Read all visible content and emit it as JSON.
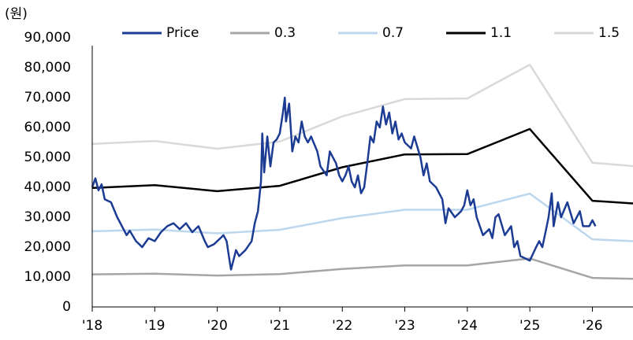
{
  "chart_data": {
    "type": "line",
    "y_label": "(원)",
    "xlim": [
      2018,
      2026.65
    ],
    "ylim": [
      0,
      90000
    ],
    "xticks": [
      {
        "value": 2018,
        "label": "'18"
      },
      {
        "value": 2019,
        "label": "'19"
      },
      {
        "value": 2020,
        "label": "'20"
      },
      {
        "value": 2021,
        "label": "'21"
      },
      {
        "value": 2022,
        "label": "'22"
      },
      {
        "value": 2023,
        "label": "'23"
      },
      {
        "value": 2024,
        "label": "'24"
      },
      {
        "value": 2025,
        "label": "'25"
      },
      {
        "value": 2026,
        "label": "'26"
      }
    ],
    "yticks": [
      0,
      {
        "value": 10000,
        "label": "10,000"
      },
      {
        "value": 20000,
        "label": "20,000"
      },
      {
        "value": 30000,
        "label": "30,000"
      },
      {
        "value": 40000,
        "label": "40,000"
      },
      {
        "value": 50000,
        "label": "50,000"
      },
      {
        "value": 60000,
        "label": "60,000"
      },
      {
        "value": 70000,
        "label": "70,000"
      },
      {
        "value": 80000,
        "label": "80,000"
      },
      {
        "value": 90000,
        "label": "90,000"
      }
    ],
    "grid": false,
    "legend": "top",
    "series": [
      {
        "name": "Price",
        "color": "#1c3c94",
        "x": [
          2018.0,
          2018.05,
          2018.1,
          2018.15,
          2018.2,
          2018.3,
          2018.4,
          2018.5,
          2018.55,
          2018.6,
          2018.7,
          2018.75,
          2018.8,
          2018.9,
          2019.0,
          2019.1,
          2019.2,
          2019.3,
          2019.4,
          2019.5,
          2019.6,
          2019.7,
          2019.8,
          2019.85,
          2019.95,
          2020.05,
          2020.1,
          2020.15,
          2020.2,
          2020.22,
          2020.3,
          2020.35,
          2020.45,
          2020.55,
          2020.6,
          2020.65,
          2020.7,
          2020.72,
          2020.75,
          2020.8,
          2020.85,
          2020.9,
          2020.95,
          2021.0,
          2021.05,
          2021.08,
          2021.1,
          2021.15,
          2021.2,
          2021.25,
          2021.3,
          2021.35,
          2021.4,
          2021.45,
          2021.5,
          2021.6,
          2021.65,
          2021.75,
          2021.8,
          2021.9,
          2021.95,
          2022.0,
          2022.05,
          2022.1,
          2022.15,
          2022.2,
          2022.25,
          2022.3,
          2022.35,
          2022.4,
          2022.45,
          2022.5,
          2022.55,
          2022.6,
          2022.65,
          2022.7,
          2022.75,
          2022.8,
          2022.85,
          2022.9,
          2022.95,
          2023.0,
          2023.1,
          2023.15,
          2023.25,
          2023.3,
          2023.35,
          2023.4,
          2023.5,
          2023.6,
          2023.65,
          2023.7,
          2023.8,
          2023.9,
          2023.95,
          2024.0,
          2024.05,
          2024.1,
          2024.15,
          2024.2,
          2024.25,
          2024.35,
          2024.4,
          2024.45,
          2024.5,
          2024.6,
          2024.7,
          2024.75,
          2024.8,
          2024.85,
          2024.95,
          2025.0,
          2025.1,
          2025.15,
          2025.2,
          2025.25,
          2025.3,
          2025.35,
          2025.38,
          2025.45,
          2025.5,
          2025.6,
          2025.7,
          2025.8,
          2025.85,
          2025.95,
          2026.0,
          2026.05
        ],
        "values": [
          40000,
          43000,
          39000,
          41000,
          36000,
          35000,
          30000,
          26000,
          24000,
          25500,
          22000,
          21000,
          20000,
          23000,
          22000,
          25000,
          27000,
          28000,
          26000,
          28000,
          25000,
          27000,
          22000,
          20000,
          21000,
          23000,
          24000,
          22000,
          15000,
          12500,
          19000,
          17000,
          19000,
          22000,
          28000,
          32000,
          42000,
          58000,
          45000,
          57000,
          47000,
          55000,
          56000,
          58000,
          65000,
          70000,
          62000,
          68000,
          52000,
          57000,
          55000,
          62000,
          57000,
          55000,
          57000,
          52000,
          47000,
          44000,
          52000,
          48000,
          44000,
          42000,
          44000,
          47000,
          42000,
          40000,
          44000,
          38000,
          40000,
          48000,
          57000,
          55000,
          62000,
          60000,
          67000,
          61000,
          65000,
          58000,
          62000,
          56000,
          58000,
          55000,
          53000,
          57000,
          50000,
          44000,
          48000,
          42000,
          40000,
          36000,
          28000,
          33000,
          30000,
          32000,
          34000,
          39000,
          34000,
          36000,
          30000,
          27000,
          24000,
          26000,
          23000,
          30000,
          31000,
          24000,
          27000,
          20000,
          22000,
          17000,
          16000,
          15500,
          20000,
          22000,
          20000,
          25000,
          30000,
          38000,
          27000,
          35000,
          30000,
          35000,
          28000,
          32000,
          27000,
          27000,
          29000,
          27000
        ]
      },
      {
        "name": "0.3",
        "color": "#a6a6a6",
        "x": [
          2018,
          2019,
          2020,
          2021,
          2022,
          2023,
          2024,
          2025,
          2026,
          2026.65
        ],
        "values": [
          10900,
          11100,
          10500,
          11000,
          12700,
          13900,
          13900,
          16200,
          9700,
          9400
        ]
      },
      {
        "name": "0.7",
        "color": "#bdd7ee",
        "x": [
          2018,
          2019,
          2020,
          2021,
          2022,
          2023,
          2024,
          2025,
          2026,
          2026.65
        ],
        "values": [
          25300,
          25900,
          24600,
          25800,
          29700,
          32500,
          32500,
          37900,
          22600,
          22000
        ]
      },
      {
        "name": "1.1",
        "color": "#000000",
        "x": [
          2018,
          2019,
          2020,
          2021,
          2022,
          2023,
          2024,
          2025,
          2026,
          2026.65
        ],
        "values": [
          39800,
          40700,
          38700,
          40500,
          46700,
          51000,
          51100,
          59500,
          35500,
          34600
        ]
      },
      {
        "name": "1.5",
        "color": "#d9d9d9",
        "x": [
          2018,
          2019,
          2020,
          2021,
          2022,
          2023,
          2024,
          2025,
          2026,
          2026.65
        ],
        "values": [
          54500,
          55500,
          52900,
          55300,
          63700,
          69500,
          69700,
          81000,
          48200,
          47100
        ]
      }
    ]
  }
}
